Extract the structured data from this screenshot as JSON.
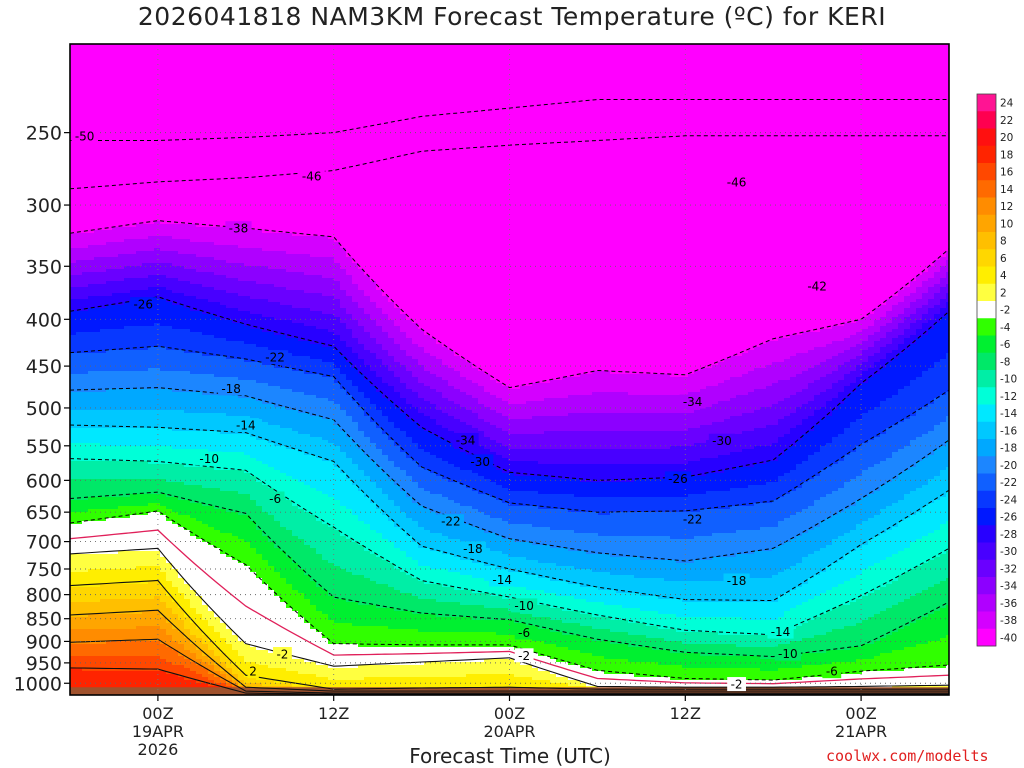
{
  "title": "2026041818 NAM3KM Forecast Temperature (ºC) for KERI",
  "xlabel": "Forecast Time (UTC)",
  "credit": "coolwx.com/modelts",
  "chart_data": {
    "type": "heatmap",
    "title": "2026041818 NAM3KM Forecast Temperature (ºC) for KERI",
    "xlabel": "Forecast Time (UTC)",
    "ylabel": "",
    "x_range_hours": [
      -6,
      54
    ],
    "y_scale": "log",
    "y_range_hpa": [
      1030,
      200
    ],
    "y_ticks": [
      250,
      300,
      350,
      400,
      450,
      500,
      550,
      600,
      650,
      700,
      750,
      800,
      850,
      900,
      950,
      1000
    ],
    "x_ticks": [
      {
        "hour": 0,
        "lines": [
          "00Z",
          "19APR",
          "2026"
        ]
      },
      {
        "hour": 12,
        "lines": [
          "12Z"
        ]
      },
      {
        "hour": 24,
        "lines": [
          "00Z",
          "20APR"
        ]
      },
      {
        "hour": 36,
        "lines": [
          "12Z"
        ]
      },
      {
        "hour": 48,
        "lines": [
          "00Z",
          "21APR"
        ]
      }
    ],
    "colorbar_levels": [
      24,
      22,
      20,
      18,
      16,
      14,
      12,
      10,
      8,
      6,
      4,
      2,
      -2,
      -4,
      -6,
      -8,
      -10,
      -12,
      -14,
      -16,
      -18,
      -20,
      -22,
      -24,
      -26,
      -28,
      -30,
      -32,
      -34,
      -36,
      -38,
      -40
    ],
    "colorbar_colors": [
      "#ff1493",
      "#ff0050",
      "#ff1010",
      "#ff2400",
      "#ff4800",
      "#ff6a00",
      "#ff8c00",
      "#ffa500",
      "#ffbf00",
      "#ffd700",
      "#ffee00",
      "#ffff40",
      "#ffffff",
      "#30ff00",
      "#00f030",
      "#00e868",
      "#00eea6",
      "#00ffd8",
      "#00e8ff",
      "#00c8ff",
      "#00a8ff",
      "#1c86ff",
      "#1060ff",
      "#0838ff",
      "#0018ff",
      "#2800ff",
      "#4800ff",
      "#6a00ff",
      "#8c00ff",
      "#b000ff",
      "#d400ff",
      "#ff00ff"
    ],
    "ground_color": "#a0522d",
    "profiles": [
      {
        "hour": -6,
        "levels_hpa": {
          "-50": 255,
          "-46": 288,
          "-38": 322,
          "-26": 392,
          "-22": 435,
          "-18": 478,
          "-14": 522,
          "-10": 568,
          "-6": 628,
          "-2": 668,
          "2": 722,
          "6": 782,
          "10": 842,
          "14": 902,
          "18": 962
        }
      },
      {
        "hour": 0,
        "levels_hpa": {
          "-50": 255,
          "-46": 283,
          "-38": 312,
          "-26": 378,
          "-22": 428,
          "-18": 475,
          "-14": 525,
          "-10": 572,
          "-6": 618,
          "-2": 648,
          "2": 712,
          "6": 772,
          "10": 832,
          "14": 895,
          "18": 965
        }
      },
      {
        "hour": 6,
        "levels_hpa": {
          "-50": 253,
          "-46": 280,
          "-38": 318,
          "-26": 405,
          "-22": 442,
          "-18": 485,
          "-14": 532,
          "-10": 585,
          "-6": 652,
          "-2": 742,
          "2": 905,
          "6": 980,
          "10": 1010,
          "14": 1020,
          "18": 1025
        }
      },
      {
        "hour": 12,
        "levels_hpa": {
          "-50": 250,
          "-46": 275,
          "-38": 325,
          "-26": 428,
          "-22": 462,
          "-18": 515,
          "-14": 572,
          "-10": 675,
          "-6": 805,
          "-2": 905,
          "2": 958,
          "6": 1015,
          "10": 1020,
          "14": 1025,
          "18": 1028
        }
      },
      {
        "hour": 18,
        "levels_hpa": {
          "-50": 240,
          "-46": 262,
          "-38": 410,
          "-26": 525,
          "-22": 580,
          "-18": 640,
          "-14": 708,
          "-10": 772,
          "-6": 838,
          "-2": 908,
          "2": 948,
          "6": 1012,
          "10": 1020,
          "14": 1025,
          "18": 1028
        }
      },
      {
        "hour": 24,
        "levels_hpa": {
          "-50": 235,
          "-46": 258,
          "-38": 475,
          "-26": 588,
          "-22": 635,
          "-18": 695,
          "-14": 750,
          "-10": 805,
          "-6": 852,
          "-2": 908,
          "2": 938,
          "6": 1010,
          "10": 1020,
          "14": 1025,
          "18": 1028
        }
      },
      {
        "hour": 30,
        "levels_hpa": {
          "-50": 230,
          "-46": 255,
          "-38": 455,
          "-26": 600,
          "-22": 650,
          "-18": 720,
          "-14": 785,
          "-10": 842,
          "-6": 895,
          "-2": 968,
          "2": 1008,
          "6": 1015,
          "10": 1020,
          "14": 1025,
          "18": 1028
        }
      },
      {
        "hour": 36,
        "levels_hpa": {
          "-50": 230,
          "-46": 252,
          "-38": 460,
          "-26": 595,
          "-22": 648,
          "-18": 735,
          "-14": 810,
          "-10": 875,
          "-6": 925,
          "-2": 988,
          "2": 1010,
          "6": 1015,
          "10": 1020,
          "14": 1025,
          "18": 1028
        }
      },
      {
        "hour": 42,
        "levels_hpa": {
          "-50": 230,
          "-46": 252,
          "-38": 420,
          "-26": 570,
          "-22": 632,
          "-18": 712,
          "-14": 812,
          "-10": 885,
          "-6": 935,
          "-2": 992,
          "2": 1010,
          "6": 1015,
          "10": 1020,
          "14": 1025,
          "18": 1028
        }
      },
      {
        "hour": 48,
        "levels_hpa": {
          "-50": 230,
          "-46": 252,
          "-38": 400,
          "-26": 470,
          "-22": 548,
          "-18": 628,
          "-14": 705,
          "-10": 802,
          "-6": 910,
          "-2": 970,
          "2": 1008,
          "6": 1015,
          "10": 1020,
          "14": 1025,
          "18": 1028
        }
      },
      {
        "hour": 54,
        "levels_hpa": {
          "-50": 230,
          "-46": 252,
          "-38": 335,
          "-26": 392,
          "-22": 478,
          "-18": 542,
          "-14": 615,
          "-10": 712,
          "-6": 815,
          "-2": 955,
          "2": 1005,
          "6": 1015,
          "10": 1020,
          "14": 1025,
          "18": 1028
        }
      }
    ],
    "contour_labels": [
      {
        "text": "-50",
        "hour": -5.0,
        "hpa": 252
      },
      {
        "text": "-46",
        "hour": 10.5,
        "hpa": 279
      },
      {
        "text": "-46",
        "hour": 39.5,
        "hpa": 283
      },
      {
        "text": "-38",
        "hour": 5.5,
        "hpa": 318
      },
      {
        "text": "-42",
        "hour": 45.0,
        "hpa": 368
      },
      {
        "text": "-26",
        "hour": -1.0,
        "hpa": 385
      },
      {
        "text": "-22",
        "hour": 8.0,
        "hpa": 440
      },
      {
        "text": "-18",
        "hour": 5.0,
        "hpa": 476
      },
      {
        "text": "-14",
        "hour": 6.0,
        "hpa": 522
      },
      {
        "text": "-10",
        "hour": 3.5,
        "hpa": 568
      },
      {
        "text": "-6",
        "hour": 8.0,
        "hpa": 628
      },
      {
        "text": "-34",
        "hour": 21.0,
        "hpa": 542
      },
      {
        "text": "-34",
        "hour": 36.5,
        "hpa": 492
      },
      {
        "text": "-30",
        "hour": 22.0,
        "hpa": 572
      },
      {
        "text": "-30",
        "hour": 38.5,
        "hpa": 543
      },
      {
        "text": "-26",
        "hour": 35.5,
        "hpa": 597
      },
      {
        "text": "-22",
        "hour": 20.0,
        "hpa": 665
      },
      {
        "text": "-22",
        "hour": 36.5,
        "hpa": 661
      },
      {
        "text": "-18",
        "hour": 21.5,
        "hpa": 712
      },
      {
        "text": "-18",
        "hour": 39.5,
        "hpa": 772
      },
      {
        "text": "-14",
        "hour": 23.5,
        "hpa": 770
      },
      {
        "text": "-14",
        "hour": 42.5,
        "hpa": 878
      },
      {
        "text": "-10",
        "hour": 25.0,
        "hpa": 822
      },
      {
        "text": "-10",
        "hour": 43.0,
        "hpa": 928
      },
      {
        "text": "-6",
        "hour": 25.0,
        "hpa": 880
      },
      {
        "text": "-6",
        "hour": 46.0,
        "hpa": 970
      },
      {
        "text": "-2",
        "hour": 8.5,
        "hpa": 929
      },
      {
        "text": "-2",
        "hour": 25.0,
        "hpa": 932
      },
      {
        "text": "-2",
        "hour": 39.5,
        "hpa": 1002
      },
      {
        "text": "2",
        "hour": 6.5,
        "hpa": 970
      }
    ]
  }
}
